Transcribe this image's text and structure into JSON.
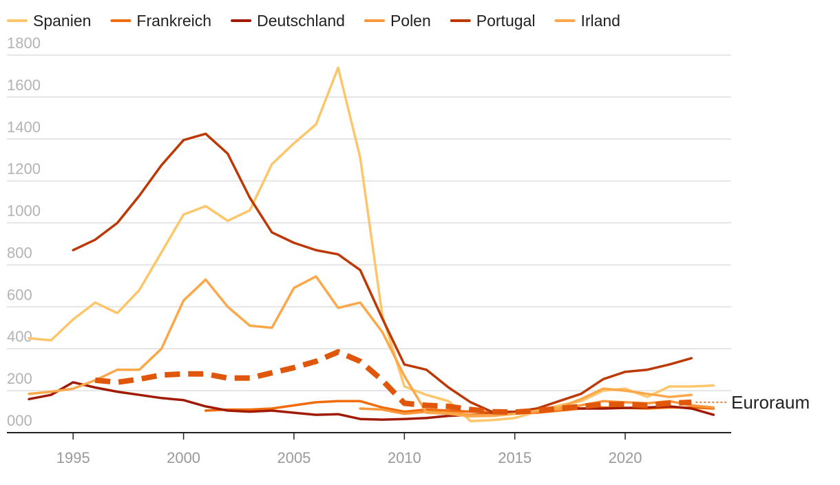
{
  "chart_data": {
    "type": "line",
    "title": "",
    "xlabel": "",
    "ylabel": "",
    "xlim": [
      1992,
      2024.8
    ],
    "ylim": [
      0,
      1800
    ],
    "y_ticks": [
      0,
      200,
      400,
      600,
      800,
      1000,
      1200,
      1400,
      1600,
      1800
    ],
    "y_tick_labels": [
      "000",
      "200",
      "400",
      "600",
      "800",
      "1000",
      "1200",
      "1400",
      "1600",
      "1800"
    ],
    "x_ticks": [
      1995,
      2000,
      2005,
      2010,
      2015,
      2020
    ],
    "x_tick_labels": [
      "1995",
      "2000",
      "2005",
      "2010",
      "2015",
      "2020"
    ],
    "grid": "horizontal",
    "legend_position": "top-left",
    "series": [
      {
        "name": "Spanien",
        "color": "#fec66a",
        "x": [
          1993,
          1994,
          1995,
          1996,
          1997,
          1998,
          1999,
          2000,
          2001,
          2002,
          2003,
          2004,
          2005,
          2006,
          2007,
          2008,
          2009,
          2010,
          2011,
          2012,
          2013,
          2014,
          2015,
          2016,
          2017,
          2018,
          2019,
          2020,
          2021,
          2022,
          2023,
          2024
        ],
        "y": [
          450,
          440,
          540,
          620,
          570,
          680,
          860,
          1040,
          1080,
          1010,
          1060,
          1280,
          1380,
          1470,
          1740,
          1310,
          560,
          220,
          180,
          150,
          55,
          60,
          70,
          100,
          130,
          150,
          200,
          210,
          170,
          220,
          220,
          225
        ]
      },
      {
        "name": "Frankreich",
        "color": "#f06b0a",
        "x": [
          2001,
          2002,
          2003,
          2004,
          2005,
          2006,
          2007,
          2008,
          2009,
          2010,
          2011,
          2012,
          2013,
          2014,
          2015,
          2016,
          2017,
          2018,
          2019,
          2020,
          2021,
          2022,
          2023,
          2024
        ],
        "y": [
          105,
          110,
          110,
          115,
          130,
          145,
          150,
          150,
          120,
          100,
          110,
          105,
          100,
          98,
          97,
          95,
          105,
          115,
          120,
          118,
          115,
          120,
          120,
          115
        ]
      },
      {
        "name": "Deutschland",
        "color": "#a11b04",
        "x": [
          1993,
          1994,
          1995,
          1996,
          1997,
          1998,
          1999,
          2000,
          2001,
          2002,
          2003,
          2004,
          2005,
          2006,
          2007,
          2008,
          2009,
          2010,
          2011,
          2012,
          2013,
          2014,
          2015,
          2016,
          2017,
          2018,
          2019,
          2020,
          2021,
          2022,
          2023,
          2024
        ],
        "y": [
          160,
          180,
          240,
          215,
          195,
          180,
          165,
          155,
          125,
          105,
          100,
          105,
          95,
          85,
          88,
          65,
          62,
          65,
          70,
          80,
          85,
          90,
          93,
          105,
          120,
          115,
          115,
          118,
          120,
          125,
          115,
          85
        ]
      },
      {
        "name": "Polen",
        "color": "#fa963c",
        "x": [
          2008,
          2009,
          2010,
          2011,
          2012,
          2013,
          2014,
          2015,
          2016,
          2017,
          2018,
          2019,
          2020,
          2021,
          2022,
          2023,
          2024
        ],
        "y": [
          115,
          110,
          90,
          100,
          95,
          85,
          85,
          90,
          100,
          110,
          130,
          150,
          145,
          140,
          150,
          130,
          120
        ]
      },
      {
        "name": "Portugal",
        "color": "#bc3804",
        "x": [
          1995,
          1996,
          1997,
          1998,
          1999,
          2000,
          2001,
          2002,
          2003,
          2004,
          2005,
          2006,
          2007,
          2008,
          2009,
          2010,
          2011,
          2012,
          2013,
          2014,
          2015,
          2016,
          2017,
          2018,
          2019,
          2020,
          2021,
          2022,
          2023
        ],
        "y": [
          870,
          920,
          1000,
          1130,
          1275,
          1395,
          1425,
          1330,
          1120,
          955,
          905,
          870,
          850,
          775,
          545,
          325,
          300,
          215,
          145,
          98,
          100,
          115,
          150,
          185,
          255,
          290,
          300,
          325,
          355
        ]
      },
      {
        "name": "Irland",
        "color": "#fca74a",
        "x": [
          1993,
          1994,
          1995,
          1996,
          1997,
          1998,
          1999,
          2000,
          2001,
          2002,
          2003,
          2004,
          2005,
          2006,
          2007,
          2008,
          2009,
          2010,
          2011,
          2012,
          2013,
          2014,
          2015,
          2016,
          2017,
          2018,
          2019,
          2020,
          2021,
          2022,
          2023
        ],
        "y": [
          185,
          195,
          210,
          250,
          300,
          300,
          400,
          630,
          730,
          600,
          510,
          500,
          690,
          745,
          595,
          620,
          480,
          270,
          95,
          90,
          78,
          80,
          90,
          105,
          120,
          160,
          210,
          200,
          185,
          170,
          180
        ]
      },
      {
        "name": "Euroraum",
        "color": "#e0570c",
        "dashed": true,
        "x": [
          1996,
          1997,
          1998,
          1999,
          2000,
          2001,
          2002,
          2003,
          2004,
          2005,
          2006,
          2007,
          2008,
          2009,
          2010,
          2011,
          2012,
          2013,
          2014,
          2015,
          2016,
          2017,
          2018,
          2019,
          2020,
          2021,
          2022,
          2023
        ],
        "y": [
          250,
          240,
          255,
          275,
          280,
          280,
          260,
          260,
          285,
          310,
          340,
          385,
          340,
          250,
          140,
          130,
          125,
          110,
          100,
          98,
          105,
          115,
          125,
          135,
          135,
          130,
          140,
          145
        ]
      }
    ],
    "annotations": [
      {
        "text": "Euroraum",
        "series": "Euroraum"
      }
    ]
  }
}
